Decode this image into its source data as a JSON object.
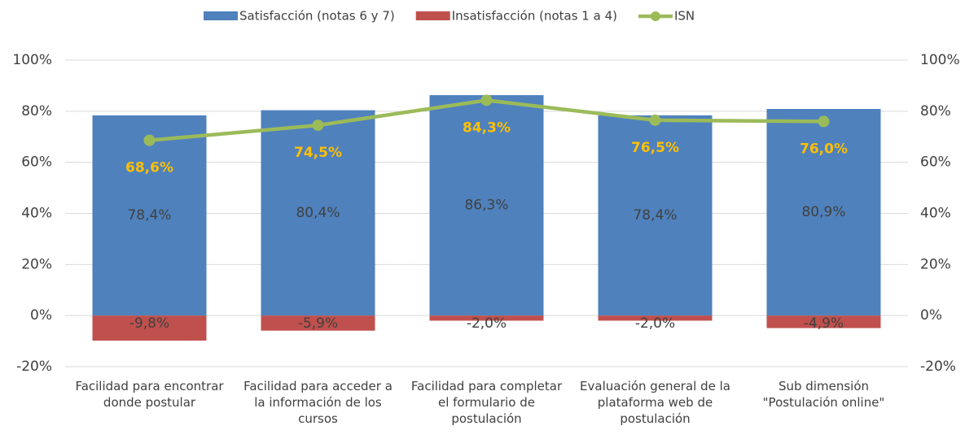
{
  "chart_data": {
    "type": "bar",
    "categories": [
      "Facilidad para encontrar donde postular",
      "Facilidad para acceder a la información de los cursos",
      "Facilidad para completar el formulario de postulación",
      "Evaluación general de la plataforma web de postulación",
      "Sub dimensión \"Postulación online\""
    ],
    "series": [
      {
        "name": "Satisfacción (notas 6 y 7)",
        "type": "bar",
        "color": "#4f81bd",
        "values": [
          78.4,
          80.4,
          86.3,
          78.4,
          80.9
        ],
        "value_labels": [
          "78,4%",
          "80,4%",
          "86,3%",
          "78,4%",
          "80,9%"
        ]
      },
      {
        "name": "Insatisfacción (notas 1 a 4)",
        "type": "bar",
        "color": "#c0504d",
        "values": [
          -9.8,
          -5.9,
          -2.0,
          -2.0,
          -4.9
        ],
        "value_labels": [
          "-9,8%",
          "-5,9%",
          "-2,0%",
          "-2,0%",
          "-4,9%"
        ]
      },
      {
        "name": "ISN",
        "type": "line",
        "color": "#9bbb59",
        "label_color": "#ffc000",
        "axis": "y2",
        "values": [
          68.6,
          74.5,
          84.3,
          76.5,
          76.0
        ],
        "value_labels": [
          "68,6%",
          "74,5%",
          "84,3%",
          "76,5%",
          "76,0%"
        ]
      }
    ],
    "ylim": [
      -20,
      100
    ],
    "yticks": [
      {
        "value": -20,
        "label": "-20%"
      },
      {
        "value": 0,
        "label": "0%"
      },
      {
        "value": 20,
        "label": "20%"
      },
      {
        "value": 40,
        "label": "40%"
      },
      {
        "value": 60,
        "label": "60%"
      },
      {
        "value": 80,
        "label": "80%"
      },
      {
        "value": 100,
        "label": "100%"
      }
    ],
    "y2lim": [
      -20,
      100
    ],
    "y2ticks": [
      {
        "value": -20,
        "label": "-20%"
      },
      {
        "value": 0,
        "label": "0%"
      },
      {
        "value": 20,
        "label": "20%"
      },
      {
        "value": 40,
        "label": "40%"
      },
      {
        "value": 60,
        "label": "60%"
      },
      {
        "value": 80,
        "label": "80%"
      },
      {
        "value": 100,
        "label": "100%"
      }
    ],
    "grid": true,
    "legend": "top"
  }
}
